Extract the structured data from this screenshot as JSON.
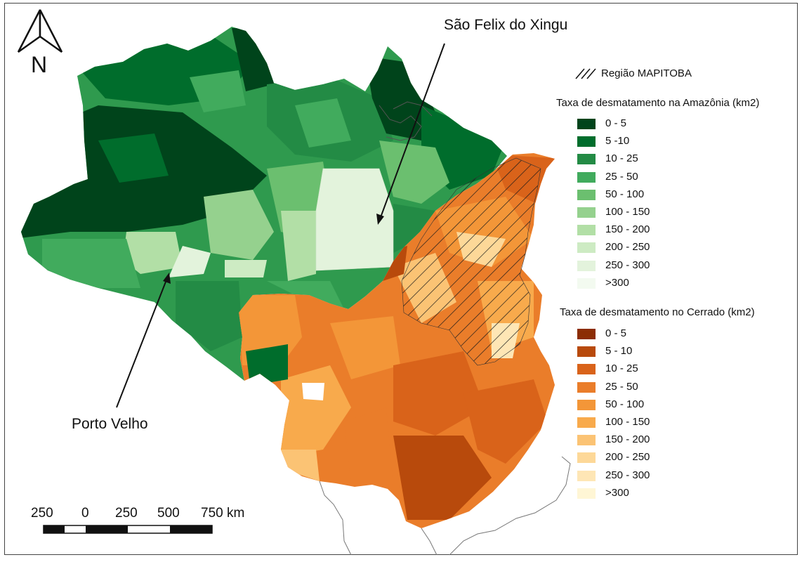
{
  "north_arrow": {
    "label": "N"
  },
  "callouts": {
    "sao_felix": "São Felix do Xingu",
    "porto_velho": "Porto Velho"
  },
  "legend": {
    "mapitoba": {
      "label": "Região MAPITOBA"
    },
    "amazonia": {
      "title": "Taxa de desmatamento na Amazônia (km2)",
      "items": [
        {
          "label": "0 - 5",
          "color": "#00441b"
        },
        {
          "label": "5 -10",
          "color": "#006d2c"
        },
        {
          "label": "10 - 25",
          "color": "#238b45"
        },
        {
          "label": "25 - 50",
          "color": "#41ab5d"
        },
        {
          "label": "50 - 100",
          "color": "#6bbf6f"
        },
        {
          "label": "100 - 150",
          "color": "#95d18e"
        },
        {
          "label": "150 - 200",
          "color": "#b2dfa6"
        },
        {
          "label": "200 - 250",
          "color": "#cdebc3"
        },
        {
          "label": "250 - 300",
          "color": "#e3f3dc"
        },
        {
          "label": ">300",
          "color": "#f3faf0"
        }
      ]
    },
    "cerrado": {
      "title": "Taxa de desmatamento no Cerrado (km2)",
      "items": [
        {
          "label": "0 - 5",
          "color": "#8c2d04"
        },
        {
          "label": "5 - 10",
          "color": "#b84a0c"
        },
        {
          "label": "10 - 25",
          "color": "#d9631a"
        },
        {
          "label": "25 - 50",
          "color": "#ea7d2a"
        },
        {
          "label": "50 - 100",
          "color": "#f39638"
        },
        {
          "label": "100 - 150",
          "color": "#f8aa4c"
        },
        {
          "label": "150 - 200",
          "color": "#fbc374"
        },
        {
          "label": "200 - 250",
          "color": "#fdd898"
        },
        {
          "label": "250 - 300",
          "color": "#fee6b5"
        },
        {
          "label": ">300",
          "color": "#fff6d5"
        }
      ]
    }
  },
  "scale_bar": {
    "labels": [
      "250",
      "0",
      "250",
      "500",
      "750 km"
    ]
  }
}
